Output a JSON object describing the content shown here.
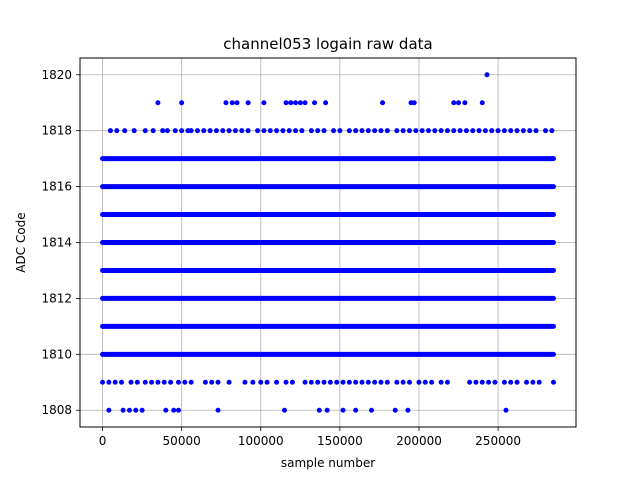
{
  "chart_data": {
    "type": "scatter",
    "title": "channel053 logain raw data",
    "xlabel": "sample number",
    "ylabel": "ADC Code",
    "xlim": [
      -14250,
      299250
    ],
    "ylim": [
      1807.4,
      1820.6
    ],
    "xticks": [
      0,
      50000,
      100000,
      150000,
      200000,
      250000
    ],
    "yticks": [
      1808,
      1810,
      1812,
      1814,
      1816,
      1818,
      1820
    ],
    "grid": true,
    "marker_color": "#0000ff",
    "n_samples": 285000,
    "series": [
      {
        "dense_levels": [
          1810,
          1811,
          1812,
          1813,
          1814,
          1815,
          1816,
          1817
        ],
        "dense_range": [
          0,
          285000
        ],
        "points": [
          [
            243000,
            1820
          ],
          [
            35000,
            1819
          ],
          [
            50000,
            1819
          ],
          [
            78000,
            1819
          ],
          [
            82000,
            1819
          ],
          [
            85000,
            1819
          ],
          [
            92000,
            1819
          ],
          [
            102000,
            1819
          ],
          [
            116000,
            1819
          ],
          [
            119000,
            1819
          ],
          [
            122000,
            1819
          ],
          [
            125000,
            1819
          ],
          [
            128000,
            1819
          ],
          [
            134000,
            1819
          ],
          [
            141000,
            1819
          ],
          [
            177000,
            1819
          ],
          [
            195000,
            1819
          ],
          [
            197000,
            1819
          ],
          [
            222000,
            1819
          ],
          [
            225000,
            1819
          ],
          [
            229000,
            1819
          ],
          [
            240000,
            1819
          ],
          [
            5000,
            1818
          ],
          [
            9000,
            1818
          ],
          [
            14000,
            1818
          ],
          [
            20000,
            1818
          ],
          [
            27000,
            1818
          ],
          [
            32000,
            1818
          ],
          [
            38000,
            1818
          ],
          [
            41000,
            1818
          ],
          [
            46000,
            1818
          ],
          [
            50000,
            1818
          ],
          [
            54000,
            1818
          ],
          [
            56000,
            1818
          ],
          [
            60000,
            1818
          ],
          [
            64000,
            1818
          ],
          [
            68000,
            1818
          ],
          [
            72000,
            1818
          ],
          [
            76000,
            1818
          ],
          [
            80000,
            1818
          ],
          [
            84000,
            1818
          ],
          [
            88000,
            1818
          ],
          [
            92000,
            1818
          ],
          [
            98000,
            1818
          ],
          [
            102000,
            1818
          ],
          [
            106000,
            1818
          ],
          [
            110000,
            1818
          ],
          [
            114000,
            1818
          ],
          [
            118000,
            1818
          ],
          [
            122000,
            1818
          ],
          [
            126000,
            1818
          ],
          [
            132000,
            1818
          ],
          [
            136000,
            1818
          ],
          [
            140000,
            1818
          ],
          [
            146000,
            1818
          ],
          [
            150000,
            1818
          ],
          [
            156000,
            1818
          ],
          [
            160000,
            1818
          ],
          [
            164000,
            1818
          ],
          [
            168000,
            1818
          ],
          [
            172000,
            1818
          ],
          [
            176000,
            1818
          ],
          [
            180000,
            1818
          ],
          [
            186000,
            1818
          ],
          [
            190000,
            1818
          ],
          [
            194000,
            1818
          ],
          [
            198000,
            1818
          ],
          [
            202000,
            1818
          ],
          [
            206000,
            1818
          ],
          [
            210000,
            1818
          ],
          [
            214000,
            1818
          ],
          [
            218000,
            1818
          ],
          [
            222000,
            1818
          ],
          [
            226000,
            1818
          ],
          [
            230000,
            1818
          ],
          [
            234000,
            1818
          ],
          [
            238000,
            1818
          ],
          [
            242000,
            1818
          ],
          [
            246000,
            1818
          ],
          [
            250000,
            1818
          ],
          [
            254000,
            1818
          ],
          [
            258000,
            1818
          ],
          [
            262000,
            1818
          ],
          [
            266000,
            1818
          ],
          [
            270000,
            1818
          ],
          [
            274000,
            1818
          ],
          [
            280000,
            1818
          ],
          [
            284000,
            1818
          ],
          [
            0,
            1809
          ],
          [
            4000,
            1809
          ],
          [
            8000,
            1809
          ],
          [
            12000,
            1809
          ],
          [
            18000,
            1809
          ],
          [
            22000,
            1809
          ],
          [
            27000,
            1809
          ],
          [
            31000,
            1809
          ],
          [
            35000,
            1809
          ],
          [
            39000,
            1809
          ],
          [
            43000,
            1809
          ],
          [
            48000,
            1809
          ],
          [
            52000,
            1809
          ],
          [
            56000,
            1809
          ],
          [
            65000,
            1809
          ],
          [
            69000,
            1809
          ],
          [
            73000,
            1809
          ],
          [
            80000,
            1809
          ],
          [
            90000,
            1809
          ],
          [
            95000,
            1809
          ],
          [
            100000,
            1809
          ],
          [
            104000,
            1809
          ],
          [
            110000,
            1809
          ],
          [
            116000,
            1809
          ],
          [
            120000,
            1809
          ],
          [
            128000,
            1809
          ],
          [
            132000,
            1809
          ],
          [
            136000,
            1809
          ],
          [
            140000,
            1809
          ],
          [
            144000,
            1809
          ],
          [
            148000,
            1809
          ],
          [
            152000,
            1809
          ],
          [
            156000,
            1809
          ],
          [
            160000,
            1809
          ],
          [
            164000,
            1809
          ],
          [
            168000,
            1809
          ],
          [
            172000,
            1809
          ],
          [
            176000,
            1809
          ],
          [
            180000,
            1809
          ],
          [
            186000,
            1809
          ],
          [
            190000,
            1809
          ],
          [
            194000,
            1809
          ],
          [
            200000,
            1809
          ],
          [
            204000,
            1809
          ],
          [
            208000,
            1809
          ],
          [
            214000,
            1809
          ],
          [
            218000,
            1809
          ],
          [
            232000,
            1809
          ],
          [
            236000,
            1809
          ],
          [
            240000,
            1809
          ],
          [
            244000,
            1809
          ],
          [
            248000,
            1809
          ],
          [
            254000,
            1809
          ],
          [
            258000,
            1809
          ],
          [
            262000,
            1809
          ],
          [
            268000,
            1809
          ],
          [
            272000,
            1809
          ],
          [
            276000,
            1809
          ],
          [
            285000,
            1809
          ],
          [
            4000,
            1808
          ],
          [
            13000,
            1808
          ],
          [
            17000,
            1808
          ],
          [
            21000,
            1808
          ],
          [
            25000,
            1808
          ],
          [
            40000,
            1808
          ],
          [
            45000,
            1808
          ],
          [
            48000,
            1808
          ],
          [
            73000,
            1808
          ],
          [
            115000,
            1808
          ],
          [
            137000,
            1808
          ],
          [
            142000,
            1808
          ],
          [
            152000,
            1808
          ],
          [
            160000,
            1808
          ],
          [
            170000,
            1808
          ],
          [
            185000,
            1808
          ],
          [
            193000,
            1808
          ],
          [
            255000,
            1808
          ]
        ]
      }
    ]
  }
}
